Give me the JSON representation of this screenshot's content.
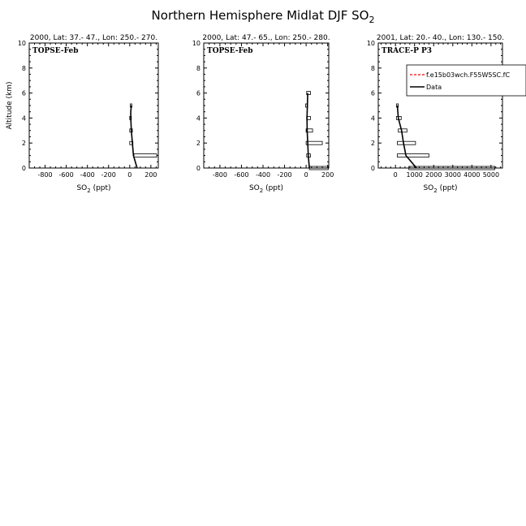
{
  "figure": {
    "title": "Northern Hemisphere Midlat DJF SO",
    "title_subscript": "2"
  },
  "legend": {
    "entries": [
      {
        "label": "f.e15b03wch.F55W5SC.fC",
        "color": "#ff0000",
        "style": "dashed"
      },
      {
        "label": "Data",
        "color": "#000000",
        "style": "solid"
      }
    ]
  },
  "chart_data": [
    {
      "type": "line",
      "header": "2000, Lat: 37.- 47., Lon: 250.- 270.",
      "campaign": "TOPSE-Feb",
      "xlabel": "SO",
      "xlabel_sub": "2",
      "xlabel_unit": " (ppt)",
      "ylabel": "Altitude (km)",
      "xlim": [
        -950,
        270
      ],
      "ylim": [
        0,
        10
      ],
      "xticks": [
        -800,
        -600,
        -400,
        -200,
        0,
        200
      ],
      "yticks": [
        0,
        2,
        4,
        6,
        8,
        10
      ],
      "series": [
        {
          "name": "Data",
          "x": [
            70,
            35,
            25,
            15,
            10,
            10,
            15
          ],
          "y": [
            0,
            1,
            2,
            3,
            4,
            4.5,
            5
          ]
        }
      ],
      "boxes": [
        {
          "y": 1,
          "x0": 40,
          "x1": 255
        },
        {
          "y": 2,
          "x0": 0,
          "x1": 30
        },
        {
          "y": 3,
          "x0": 0,
          "x1": 25
        },
        {
          "y": 4,
          "x0": 0,
          "x1": 15
        },
        {
          "y": 5,
          "x0": 5,
          "x1": 20
        }
      ]
    },
    {
      "type": "line",
      "header": "2000, Lat: 47.- 65., Lon: 250.- 280.",
      "campaign": "TOPSE-Feb",
      "xlabel": "SO",
      "xlabel_sub": "2",
      "xlabel_unit": " (ppt)",
      "xlim": [
        -950,
        210
      ],
      "ylim": [
        0,
        10
      ],
      "xticks": [
        -800,
        -600,
        -400,
        -200,
        0,
        200
      ],
      "yticks": [
        0,
        2,
        4,
        6,
        8,
        10
      ],
      "series": [
        {
          "name": "Data",
          "x": [
            30,
            20,
            15,
            10,
            8,
            15
          ],
          "y": [
            0,
            1,
            2,
            3,
            4,
            6
          ]
        }
      ],
      "boxes": [
        {
          "y": 0,
          "x0": 30,
          "x1": 205
        },
        {
          "y": 1,
          "x0": 5,
          "x1": 40
        },
        {
          "y": 2,
          "x0": 0,
          "x1": 150
        },
        {
          "y": 3,
          "x0": 0,
          "x1": 60
        },
        {
          "y": 4,
          "x0": 5,
          "x1": 40
        },
        {
          "y": 5,
          "x0": -5,
          "x1": 15
        },
        {
          "y": 6,
          "x0": 5,
          "x1": 40
        }
      ]
    },
    {
      "type": "line",
      "header": "2001, Lat: 20.- 40., Lon: 130.- 150.",
      "campaign": "TRACE-P P3",
      "xlabel": "SO",
      "xlabel_sub": "2",
      "xlabel_unit": " (ppt)",
      "xlim": [
        -900,
        5600
      ],
      "ylim": [
        0,
        10
      ],
      "xticks": [
        0,
        1000,
        2000,
        3000,
        4000,
        5000
      ],
      "yticks": [
        0,
        2,
        4,
        6,
        8,
        10
      ],
      "series": [
        {
          "name": "Data",
          "x": [
            1100,
            550,
            420,
            320,
            150,
            100
          ],
          "y": [
            0,
            1,
            2,
            3,
            4,
            5
          ]
        }
      ],
      "boxes": [
        {
          "y": 0,
          "x0": 700,
          "x1": 5200
        },
        {
          "y": 1,
          "x0": 100,
          "x1": 1750
        },
        {
          "y": 2,
          "x0": 100,
          "x1": 1050
        },
        {
          "y": 3,
          "x0": 150,
          "x1": 600
        },
        {
          "y": 4,
          "x0": 50,
          "x1": 300
        },
        {
          "y": 5,
          "x0": 50,
          "x1": 150
        }
      ]
    }
  ]
}
